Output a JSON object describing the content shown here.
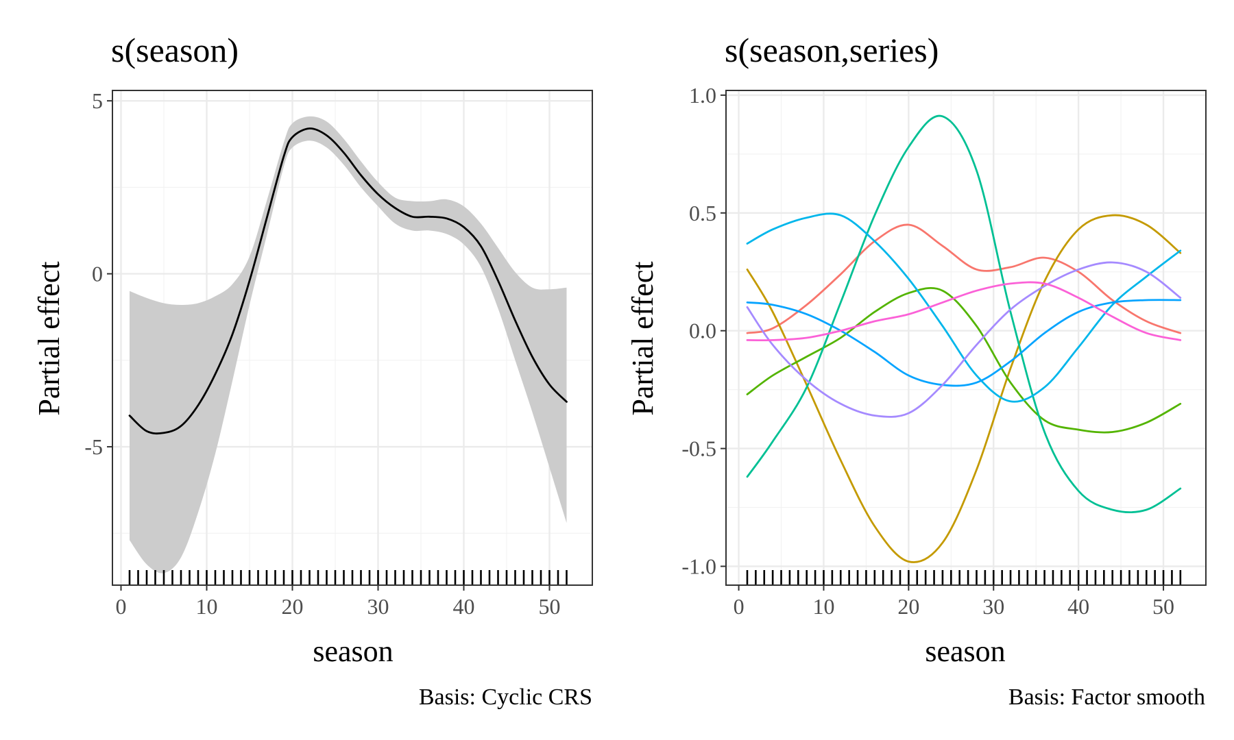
{
  "chart_data": [
    {
      "type": "line",
      "title": "s(season)",
      "xlabel": "season",
      "ylabel": "Partial effect",
      "caption": "Basis: Cyclic CRS",
      "xlim": [
        -1,
        55
      ],
      "ylim": [
        -9,
        5.3
      ],
      "xticks": [
        0,
        10,
        20,
        30,
        40,
        50
      ],
      "xtick_labels": [
        "0",
        "10",
        "20",
        "30",
        "40",
        "50"
      ],
      "yticks": [
        5,
        0,
        -5
      ],
      "ytick_labels": [
        "5",
        "0",
        "-5"
      ],
      "grid": true,
      "line_color": "#000000",
      "ribbon_color": "#cccccc",
      "x": [
        1,
        3,
        5,
        7,
        9,
        11,
        13,
        15,
        17,
        19,
        20,
        22,
        24,
        26,
        28,
        30,
        32,
        34,
        36,
        38,
        40,
        42,
        44,
        46,
        48,
        50,
        52
      ],
      "series": [
        {
          "values": [
            -4.1,
            -4.55,
            -4.6,
            -4.4,
            -3.8,
            -2.9,
            -1.75,
            -0.2,
            1.6,
            3.4,
            3.95,
            4.2,
            4.0,
            3.5,
            2.85,
            2.3,
            1.9,
            1.65,
            1.65,
            1.6,
            1.35,
            0.8,
            -0.2,
            -1.35,
            -2.4,
            -3.2,
            -3.7
          ],
          "lower": [
            -7.7,
            -8.4,
            -8.65,
            -8.2,
            -6.9,
            -5.2,
            -3.1,
            -0.9,
            1.1,
            3.1,
            3.65,
            3.85,
            3.65,
            3.15,
            2.5,
            1.95,
            1.45,
            1.25,
            1.25,
            1.15,
            0.85,
            0.2,
            -1.0,
            -2.5,
            -4.0,
            -5.6,
            -7.2
          ],
          "upper": [
            -0.5,
            -0.7,
            -0.85,
            -0.9,
            -0.85,
            -0.65,
            -0.3,
            0.5,
            2.1,
            3.8,
            4.35,
            4.55,
            4.4,
            3.9,
            3.25,
            2.65,
            2.2,
            2.1,
            2.1,
            2.15,
            1.95,
            1.45,
            0.75,
            0.05,
            -0.4,
            -0.45,
            -0.4
          ]
        }
      ],
      "rug": [
        1,
        2,
        3,
        4,
        5,
        6,
        7,
        8,
        9,
        10,
        11,
        12,
        13,
        14,
        15,
        16,
        17,
        18,
        19,
        20,
        21,
        22,
        23,
        24,
        25,
        26,
        27,
        28,
        29,
        30,
        31,
        32,
        33,
        34,
        35,
        36,
        37,
        38,
        39,
        40,
        41,
        42,
        43,
        44,
        45,
        46,
        47,
        48,
        49,
        50,
        51,
        52
      ]
    },
    {
      "type": "line",
      "title": "s(season,series)",
      "xlabel": "season",
      "ylabel": "Partial effect",
      "caption": "Basis: Factor smooth",
      "xlim": [
        -1.5,
        55
      ],
      "ylim": [
        -1.08,
        1.02
      ],
      "xticks": [
        0,
        10,
        20,
        30,
        40,
        50
      ],
      "xtick_labels": [
        "0",
        "10",
        "20",
        "30",
        "40",
        "50"
      ],
      "yticks": [
        1.0,
        0.5,
        0.0,
        -0.5,
        -1.0
      ],
      "ytick_labels": [
        "1.0",
        "0.5",
        "0.0",
        "-0.5",
        "-1.0"
      ],
      "grid": true,
      "x": [
        1,
        4,
        8,
        12,
        16,
        20,
        24,
        28,
        32,
        36,
        40,
        44,
        48,
        52
      ],
      "series": [
        {
          "color": "#F8766D",
          "values": [
            -0.01,
            0.01,
            0.11,
            0.24,
            0.38,
            0.45,
            0.36,
            0.26,
            0.27,
            0.31,
            0.25,
            0.13,
            0.04,
            -0.01
          ]
        },
        {
          "color": "#C49A00",
          "values": [
            0.26,
            0.08,
            -0.23,
            -0.55,
            -0.83,
            -0.98,
            -0.9,
            -0.59,
            -0.16,
            0.21,
            0.43,
            0.49,
            0.45,
            0.33
          ]
        },
        {
          "color": "#53B400",
          "values": [
            -0.27,
            -0.19,
            -0.11,
            -0.03,
            0.08,
            0.16,
            0.17,
            0.02,
            -0.22,
            -0.38,
            -0.42,
            -0.43,
            -0.39,
            -0.31
          ]
        },
        {
          "color": "#00C094",
          "values": [
            -0.62,
            -0.47,
            -0.24,
            0.12,
            0.49,
            0.78,
            0.91,
            0.68,
            0.08,
            -0.43,
            -0.68,
            -0.76,
            -0.76,
            -0.67
          ]
        },
        {
          "color": "#00B6EB",
          "values": [
            0.37,
            0.43,
            0.48,
            0.49,
            0.38,
            0.22,
            0.02,
            -0.19,
            -0.3,
            -0.24,
            -0.07,
            0.11,
            0.23,
            0.34
          ]
        },
        {
          "color": "#06A4FF",
          "values": [
            0.12,
            0.11,
            0.07,
            0.0,
            -0.09,
            -0.19,
            -0.23,
            -0.22,
            -0.13,
            -0.01,
            0.08,
            0.12,
            0.13,
            0.13
          ]
        },
        {
          "color": "#A58AFF",
          "values": [
            0.1,
            -0.06,
            -0.21,
            -0.31,
            -0.36,
            -0.35,
            -0.23,
            -0.06,
            0.09,
            0.19,
            0.26,
            0.29,
            0.25,
            0.14
          ]
        },
        {
          "color": "#FB61D7",
          "values": [
            -0.04,
            -0.04,
            -0.03,
            0.0,
            0.04,
            0.07,
            0.12,
            0.17,
            0.2,
            0.2,
            0.14,
            0.06,
            -0.01,
            -0.04
          ]
        }
      ],
      "rug": [
        1,
        2,
        3,
        4,
        5,
        6,
        7,
        8,
        9,
        10,
        11,
        12,
        13,
        14,
        15,
        16,
        17,
        18,
        19,
        20,
        21,
        22,
        23,
        24,
        25,
        26,
        27,
        28,
        29,
        30,
        31,
        32,
        33,
        34,
        35,
        36,
        37,
        38,
        39,
        40,
        41,
        42,
        43,
        44,
        45,
        46,
        47,
        48,
        49,
        50,
        51,
        52
      ]
    }
  ]
}
